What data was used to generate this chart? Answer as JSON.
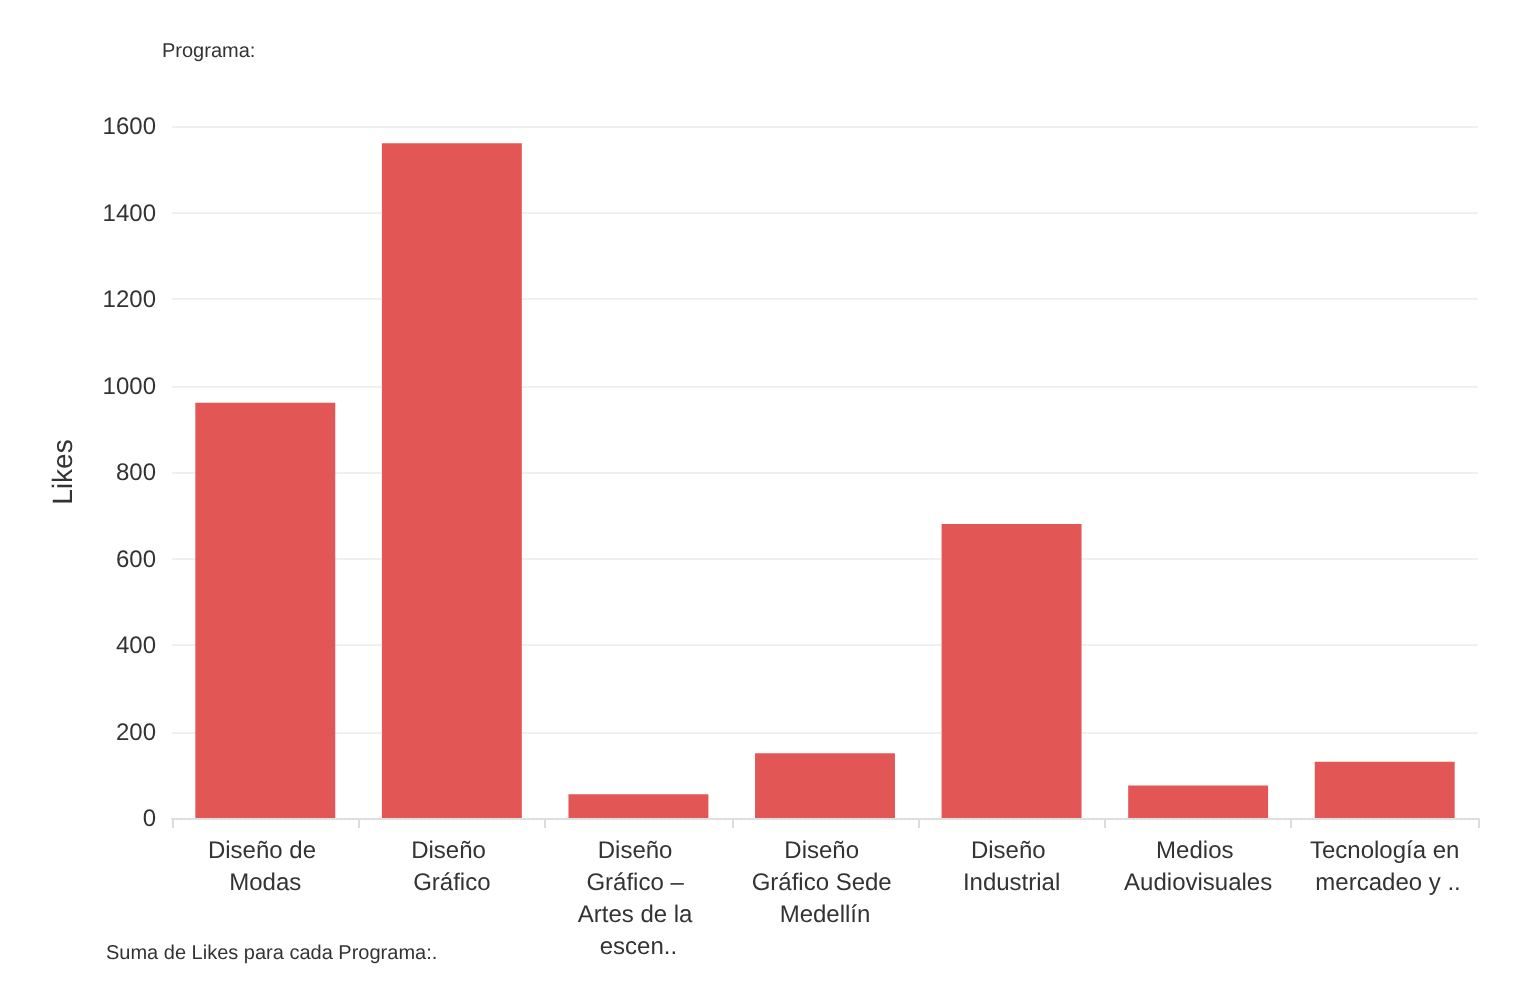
{
  "chart_data": {
    "type": "bar",
    "title": "Programa:",
    "ylabel": "Likes",
    "annotations": [
      "Suma de Likes para cada Programa:."
    ],
    "categories": [
      "Diseño de Modas",
      "Diseño Gráfico",
      "Diseño Gráfico – Artes de la escen..",
      "Diseño Gráfico Sede Medellín",
      "Diseño Industrial",
      "Medios Audiovisuales",
      "Tecnología en mercadeo y .."
    ],
    "values": [
      960,
      1560,
      55,
      150,
      680,
      75,
      130
    ],
    "color": "#e35656",
    "ylim": [
      0,
      1600
    ],
    "yticks": [
      0,
      200,
      400,
      600,
      800,
      1000,
      1200,
      1400,
      1600
    ],
    "grid": "y"
  }
}
